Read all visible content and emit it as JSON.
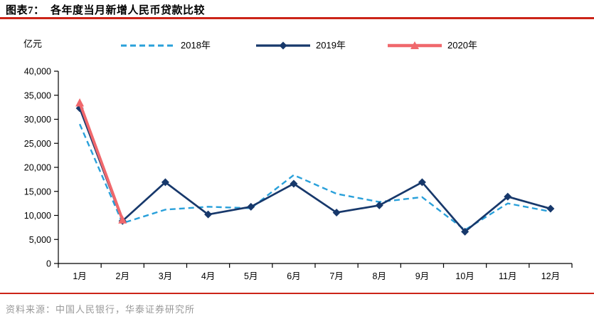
{
  "header": {
    "title": "图表7：  各年度当月新增人民币贷款比较",
    "unit_label": "亿元"
  },
  "footer": {
    "source": "资料来源：中国人民银行，华泰证券研究所"
  },
  "colors": {
    "accent_red": "#CC2418",
    "axis": "#000000",
    "tick_text": "#000000",
    "footer_text": "#999999",
    "series_2018": "#29A0DA",
    "series_2019": "#17386B",
    "series_2020": "#F0686C"
  },
  "chart_data": {
    "type": "line",
    "title": "各年度当月新增人民币贷款比较",
    "ylabel": "亿元",
    "xlabel": "",
    "ylim": [
      0,
      40000
    ],
    "ytick_step": 5000,
    "ytick_labels": [
      "0",
      "5,000",
      "10,000",
      "15,000",
      "20,000",
      "25,000",
      "30,000",
      "35,000",
      "40,000"
    ],
    "grid": false,
    "legend_position": "top",
    "categories": [
      "1月",
      "2月",
      "3月",
      "4月",
      "5月",
      "6月",
      "7月",
      "8月",
      "9月",
      "10月",
      "11月",
      "12月"
    ],
    "series": [
      {
        "name": "2018年",
        "style": "dashed",
        "marker": "none",
        "color": "#29A0DA",
        "values": [
          29000,
          8393,
          11200,
          11800,
          11500,
          18400,
          14500,
          12800,
          13800,
          6970,
          12500,
          10800
        ]
      },
      {
        "name": "2019年",
        "style": "solid",
        "marker": "diamond",
        "color": "#17386B",
        "values": [
          32300,
          8858,
          16900,
          10200,
          11800,
          16600,
          10600,
          12100,
          16900,
          6613,
          13900,
          11400
        ]
      },
      {
        "name": "2020年",
        "style": "solid",
        "marker": "triangle",
        "color": "#F0686C",
        "values": [
          33400,
          9057
        ]
      }
    ]
  }
}
